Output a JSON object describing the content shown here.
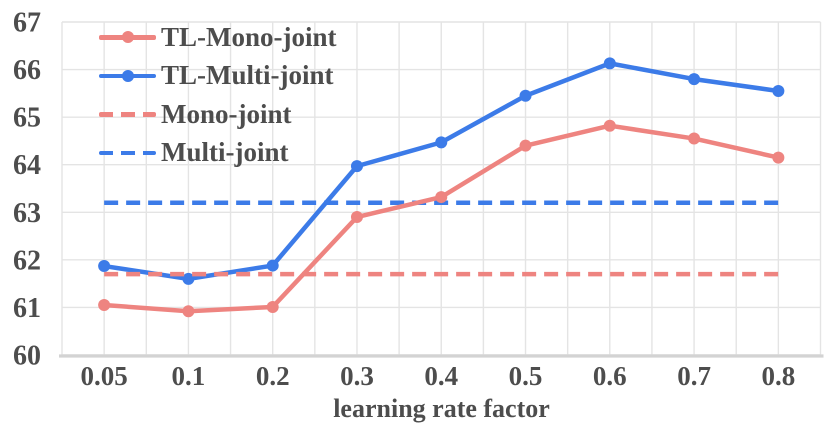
{
  "chart_data": {
    "type": "line",
    "title": "",
    "xlabel": "learning rate factor",
    "ylabel": "",
    "x_tick_labels": [
      "0.05",
      "0.1",
      "0.2",
      "0.3",
      "0.4",
      "0.5",
      "0.6",
      "0.7",
      "0.8"
    ],
    "y_ticks": [
      60,
      61,
      62,
      63,
      64,
      65,
      66,
      67
    ],
    "ylim": [
      60,
      67
    ],
    "grid": true,
    "legend_position": "top-left-inside",
    "series": [
      {
        "name": "TL-Mono-joint",
        "type": "line",
        "style": "solid",
        "marker": "circle",
        "color": "#ee8480",
        "draw_order": 3,
        "values": [
          61.05,
          60.92,
          61.01,
          62.9,
          63.32,
          64.4,
          64.82,
          64.55,
          64.15
        ]
      },
      {
        "name": "TL-Multi-joint",
        "type": "line",
        "style": "solid",
        "marker": "circle",
        "color": "#3c7be8",
        "draw_order": 1,
        "values": [
          61.87,
          61.6,
          61.88,
          63.97,
          64.47,
          65.45,
          66.13,
          65.8,
          65.55
        ]
      },
      {
        "name": "Mono-joint",
        "type": "hline",
        "style": "dashed",
        "color": "#ee8480",
        "draw_order": 4,
        "value": 61.7
      },
      {
        "name": "Multi-joint",
        "type": "hline",
        "style": "dashed",
        "color": "#3c7be8",
        "draw_order": 2,
        "value": 63.2
      }
    ],
    "colors": {
      "text": "#4d4d4d",
      "grid": "#e4e4e4",
      "axis": "#d3d3d3",
      "background": "#ffffff"
    }
  }
}
